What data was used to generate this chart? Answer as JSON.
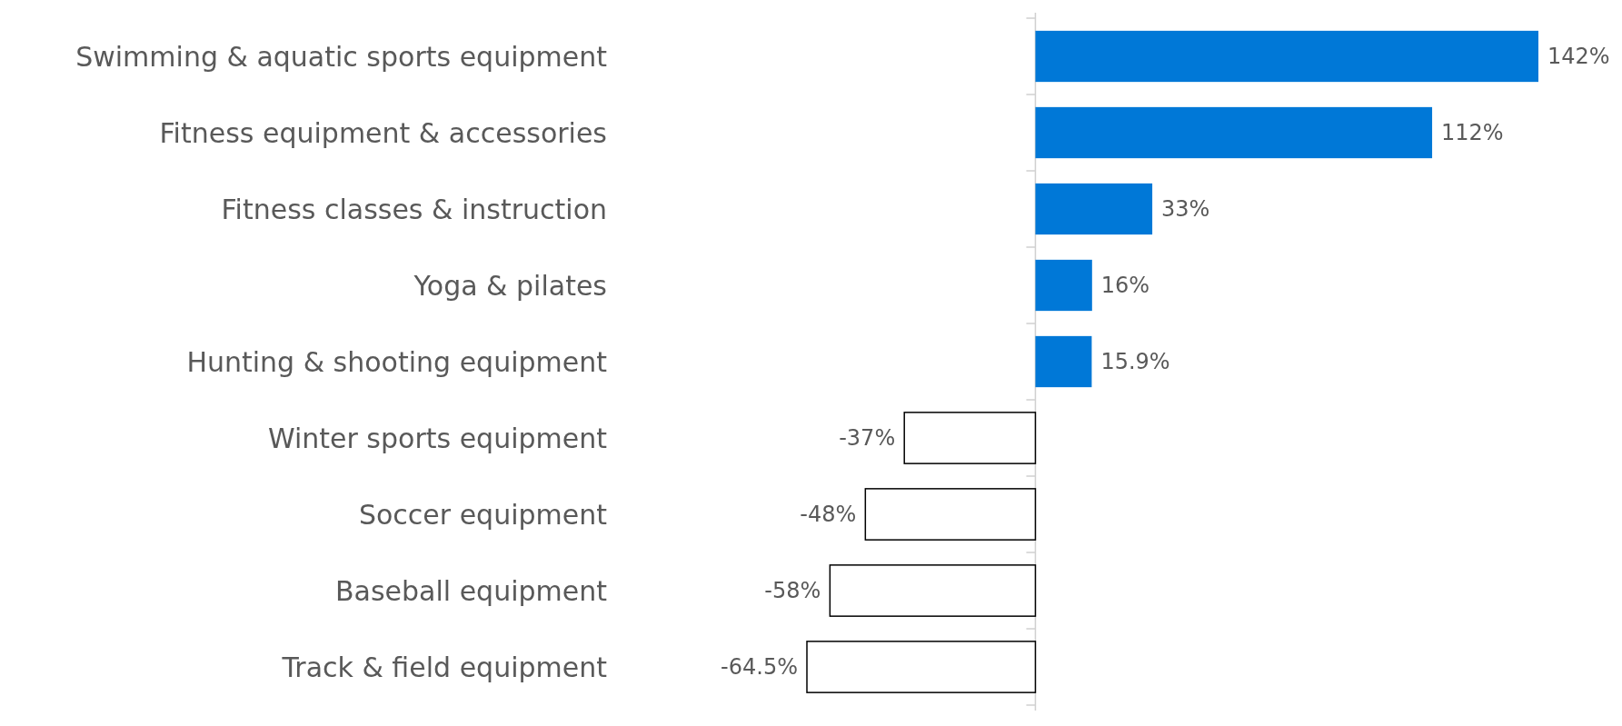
{
  "chart_data": {
    "type": "bar",
    "orientation": "horizontal",
    "data_labels": true,
    "categories": [
      "Swimming & aquatic sports equipment",
      "Fitness equipment & accessories",
      "Fitness classes & instruction",
      "Yoga & pilates",
      "Hunting & shooting equipment",
      "Winter sports equipment",
      "Soccer equipment",
      "Baseball equipment",
      "Track & field equipment"
    ],
    "values": [
      142,
      112,
      33,
      16,
      15.9,
      -37,
      -48,
      -58,
      -64.5
    ],
    "value_labels": [
      "142%",
      "112%",
      "33%",
      "16%",
      "15.9%",
      "-37%",
      "-48%",
      "-58%",
      "-64.5%"
    ],
    "colors": [
      "#0078d7",
      "#0078d7",
      "#0078d7",
      "#0078d7",
      "#0078d7",
      "#ffffff",
      "#ffffff",
      "#ffffff",
      "#ffffff"
    ]
  }
}
